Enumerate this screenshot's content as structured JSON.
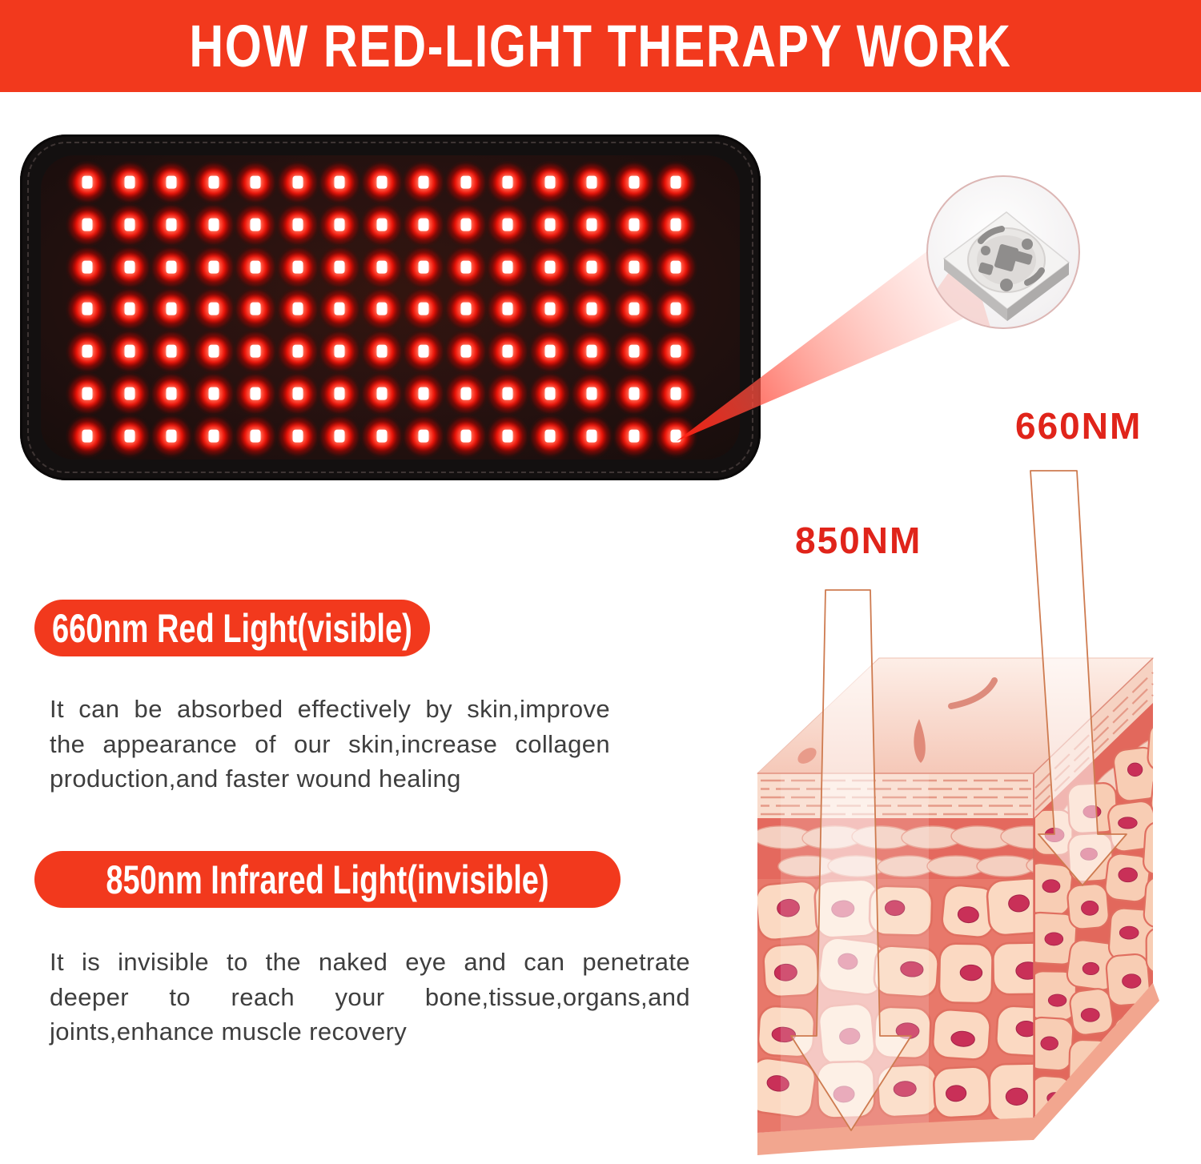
{
  "banner": {
    "title": "HOW RED-LIGHT THERAPY WORK"
  },
  "device": {
    "name": "red-light-therapy-pad",
    "leds": {
      "rows": 7,
      "cols": 15
    }
  },
  "chip_inset": {
    "icon": "smd-led-chip-icon"
  },
  "wavelengths": {
    "red": "660NM",
    "infrared": "850NM"
  },
  "sections": [
    {
      "heading": "660nm Red Light(visible)",
      "text": "It can be absorbed effectively by skin,improve the appearance of our skin,increase collagen production,and faster wound healing",
      "lines": [
        "It can be absorbed effectively by skin,improve",
        "the appearance of our skin,increase collagen",
        "production,and faster wound healing"
      ]
    },
    {
      "heading": "850nm Infrared Light(invisible)",
      "text": "It is invisible to the naked eye and can penetrate deeper to reach your bone,tissue,organs,and joints,enhance muscle recovery",
      "lines": [
        "It is invisible to the naked eye and can penetrate",
        "deeper to reach your bone,tissue,organs,and",
        "joints,enhance muscle recovery"
      ]
    }
  ],
  "colors": {
    "accent": "#f2391d",
    "label_red": "#e0241a",
    "body_text": "#3e3e3e",
    "led_red": "#ff1406",
    "pad_black": "#131010",
    "skin_base": "#e8786a",
    "skin_stripe_bg": "#f9dccd",
    "cell_fill": "#fbd9c2",
    "cell_stroke": "#e06f60",
    "nucleus": "#c93058",
    "arrow_outline": "#ce7b50"
  }
}
